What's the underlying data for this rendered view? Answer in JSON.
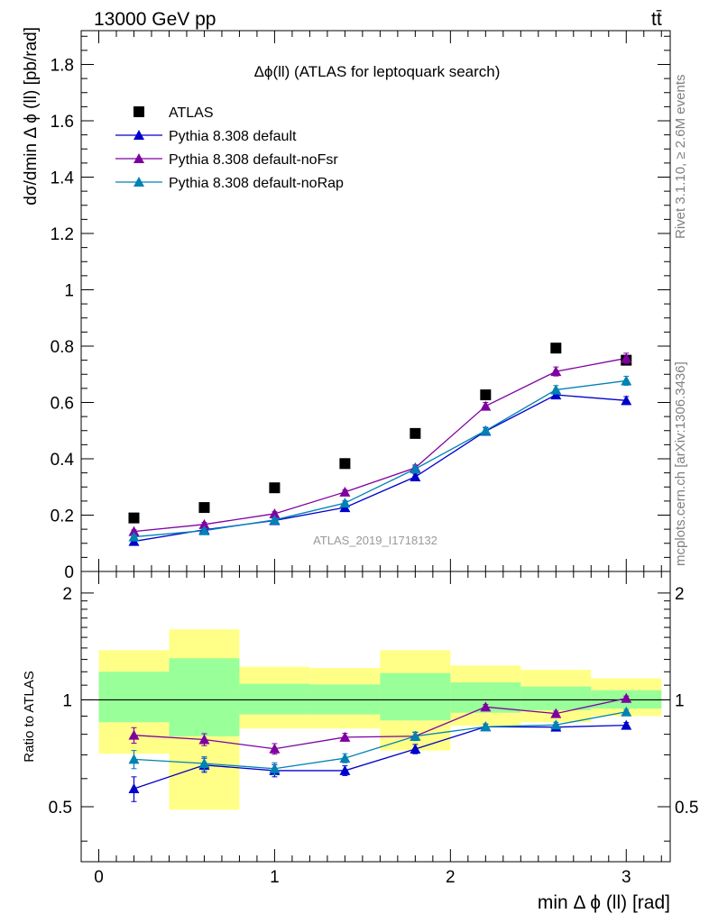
{
  "header": {
    "left": "13000 GeV pp",
    "right": "tt̄"
  },
  "side_labels": {
    "rivet": "Rivet 3.1.10, ≥ 2.6M events",
    "mcplots": "mcplots.cern.ch [arXiv:1306.3436]"
  },
  "colors": {
    "data": "#000000",
    "default": "#0000cc",
    "noFsr": "#7f00a0",
    "noRap": "#0082b4",
    "band_inner": "#99ff99",
    "band_outer": "#ffff88"
  },
  "chart_data": [
    {
      "type": "scatter",
      "title": "Δϕ(ll) (ATLAS for leptoquark search)",
      "watermark": "ATLAS_2019_I1718132",
      "xlabel": "min Δ ϕ (ll) [rad]",
      "ylabel": "dσ/dmin Δ ϕ (ll) [pb/rad]",
      "xlim": [
        -0.1,
        3.25
      ],
      "ylim": [
        0,
        1.92
      ],
      "x_ticks": [
        "0",
        "1",
        "2",
        "3"
      ],
      "y_ticks": [
        "0",
        "0.2",
        "0.4",
        "0.6",
        "0.8",
        "1",
        "1.2",
        "1.4",
        "1.6",
        "1.8"
      ],
      "x": [
        0.2,
        0.6,
        1.0,
        1.4,
        1.8,
        2.2,
        2.6,
        3.0
      ],
      "legend_position": "top-left",
      "series": [
        {
          "name": "ATLAS",
          "key": "data",
          "marker": "square",
          "values": [
            0.19,
            0.227,
            0.297,
            0.383,
            0.49,
            0.627,
            0.793,
            0.75
          ]
        },
        {
          "name": "Pythia 8.308 default",
          "key": "default",
          "marker": "triangle",
          "values": [
            0.107,
            0.148,
            0.181,
            0.227,
            0.336,
            0.498,
            0.627,
            0.607
          ],
          "errors": [
            0.006,
            0.007,
            0.007,
            0.008,
            0.01,
            0.012,
            0.014,
            0.014
          ]
        },
        {
          "name": "Pythia 8.308 default-noFsr",
          "key": "noFsr",
          "marker": "triangle",
          "values": [
            0.142,
            0.167,
            0.205,
            0.282,
            0.368,
            0.587,
            0.71,
            0.757
          ],
          "errors": [
            0.006,
            0.007,
            0.007,
            0.008,
            0.01,
            0.013,
            0.016,
            0.018
          ]
        },
        {
          "name": "Pythia 8.308 default-noRap",
          "key": "noRap",
          "marker": "triangle",
          "values": [
            0.123,
            0.145,
            0.183,
            0.243,
            0.364,
            0.5,
            0.645,
            0.677
          ],
          "errors": [
            0.006,
            0.007,
            0.007,
            0.008,
            0.01,
            0.012,
            0.015,
            0.016
          ]
        }
      ]
    },
    {
      "type": "scatter",
      "ylabel": "Ratio to ATLAS",
      "ylim": [
        0.35,
        2.3
      ],
      "y_ticks": [
        "0.5",
        "1",
        "2"
      ],
      "x": [
        0.2,
        0.6,
        1.0,
        1.4,
        1.8,
        2.2,
        2.6,
        3.0
      ],
      "bands": {
        "edges": [
          0.0,
          0.4,
          0.8,
          1.2,
          1.6,
          2.0,
          2.4,
          2.8,
          3.2
        ],
        "inner": [
          [
            0.865,
            1.2
          ],
          [
            0.79,
            1.31
          ],
          [
            0.91,
            1.11
          ],
          [
            0.91,
            1.105
          ],
          [
            0.875,
            1.19
          ],
          [
            0.92,
            1.12
          ],
          [
            0.935,
            1.09
          ],
          [
            0.945,
            1.065
          ]
        ],
        "outer": [
          [
            0.705,
            1.38
          ],
          [
            0.49,
            1.58
          ],
          [
            0.83,
            1.24
          ],
          [
            0.83,
            1.23
          ],
          [
            0.72,
            1.38
          ],
          [
            0.845,
            1.25
          ],
          [
            0.865,
            1.215
          ],
          [
            0.9,
            1.15
          ]
        ]
      },
      "reference_line": 1,
      "series": [
        {
          "name": "Pythia 8.308 default",
          "key": "default",
          "values": [
            0.562,
            0.655,
            0.632,
            0.632,
            0.727,
            0.84,
            0.838,
            0.848
          ],
          "errors": [
            0.045,
            0.03,
            0.025,
            0.02,
            0.022,
            0.015,
            0.015,
            0.015
          ]
        },
        {
          "name": "Pythia 8.308 default-noFsr",
          "key": "noFsr",
          "values": [
            0.795,
            0.773,
            0.728,
            0.785,
            0.79,
            0.955,
            0.915,
            1.01
          ],
          "errors": [
            0.04,
            0.03,
            0.025,
            0.02,
            0.02,
            0.015,
            0.015,
            0.015
          ]
        },
        {
          "name": "Pythia 8.308 default-noRap",
          "key": "noRap",
          "values": [
            0.68,
            0.662,
            0.64,
            0.685,
            0.79,
            0.84,
            0.85,
            0.925
          ],
          "errors": [
            0.04,
            0.03,
            0.025,
            0.02,
            0.022,
            0.015,
            0.015,
            0.015
          ]
        }
      ]
    }
  ]
}
